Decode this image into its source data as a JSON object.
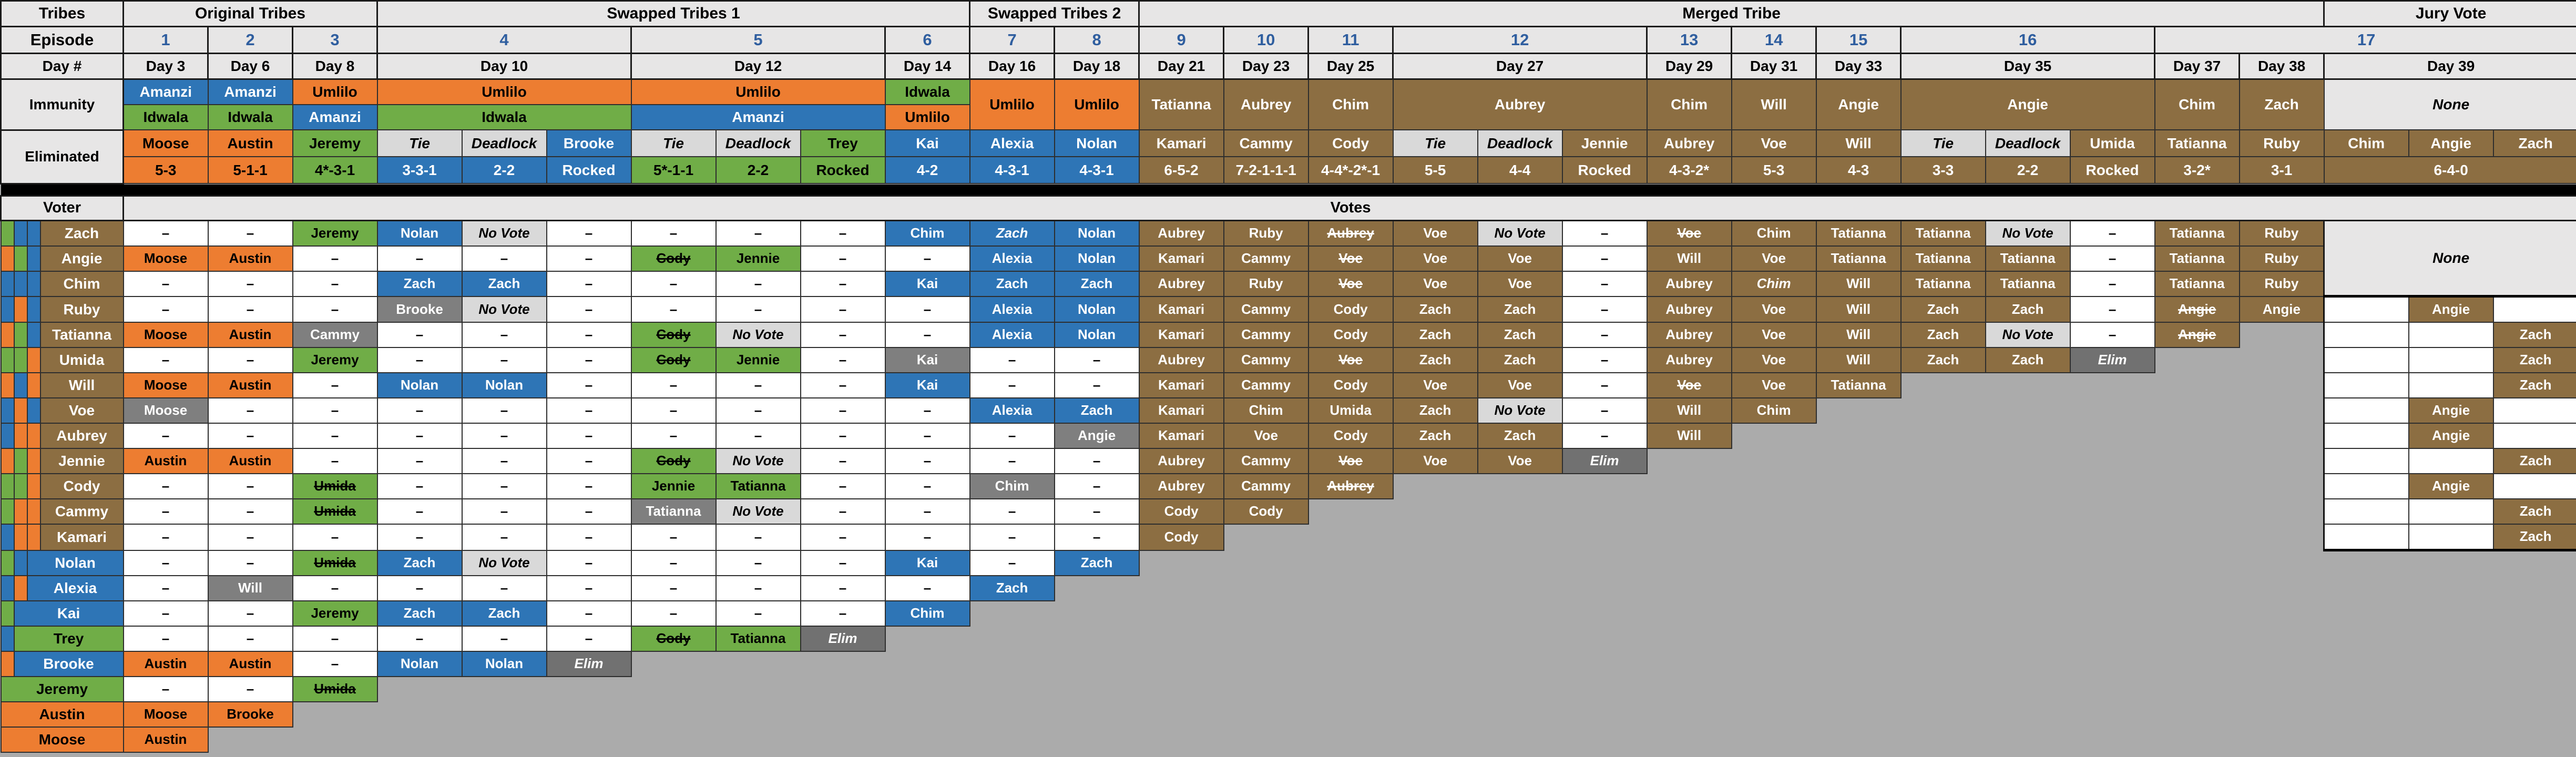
{
  "colors": {
    "orange": "#ED7D31",
    "green": "#70AD47",
    "blue": "#2E75B6",
    "brown_merged": "#8C6E42",
    "gray_vote": "#7F7F7F",
    "no_vote_gray": "#D9D9D9",
    "elim_gray": "#717171",
    "header_gray": "#E7E6E6",
    "void_background": "#ABABAB",
    "episode_number_blue": "#2F5E9F"
  },
  "labels": {
    "tribes": "Tribes",
    "episode": "Episode",
    "day": "Day #",
    "immunity": "Immunity",
    "eliminated": "Eliminated",
    "voter": "Voter",
    "votes": "Votes",
    "none": "None",
    "no_vote": "No Vote",
    "elim": "Elim",
    "tie": "Tie",
    "deadlock": "Deadlock",
    "rocked": "Rocked",
    "dash": "–"
  },
  "phases": [
    {
      "label": "Original Tribes",
      "span": 3
    },
    {
      "label": "Swapped Tribes 1",
      "span": 7
    },
    {
      "label": "Swapped Tribes 2",
      "span": 2
    },
    {
      "label": "Merged Tribe",
      "span": 14
    },
    {
      "label": "Jury Vote",
      "span": 3
    }
  ],
  "episodes": [
    {
      "num": "1",
      "span": 1
    },
    {
      "num": "2",
      "span": 1
    },
    {
      "num": "3",
      "span": 1
    },
    {
      "num": "4",
      "span": 3
    },
    {
      "num": "5",
      "span": 3
    },
    {
      "num": "6",
      "span": 1
    },
    {
      "num": "7",
      "span": 1
    },
    {
      "num": "8",
      "span": 1
    },
    {
      "num": "9",
      "span": 1
    },
    {
      "num": "10",
      "span": 1
    },
    {
      "num": "11",
      "span": 1
    },
    {
      "num": "12",
      "span": 3
    },
    {
      "num": "13",
      "span": 1
    },
    {
      "num": "14",
      "span": 1
    },
    {
      "num": "15",
      "span": 1
    },
    {
      "num": "16",
      "span": 3
    },
    {
      "num": "17",
      "span": 5
    }
  ],
  "days": [
    {
      "label": "Day 3",
      "span": 1
    },
    {
      "label": "Day 6",
      "span": 1
    },
    {
      "label": "Day 8",
      "span": 1
    },
    {
      "label": "Day 10",
      "span": 3
    },
    {
      "label": "Day 12",
      "span": 3
    },
    {
      "label": "Day 14",
      "span": 1
    },
    {
      "label": "Day 16",
      "span": 1
    },
    {
      "label": "Day 18",
      "span": 1
    },
    {
      "label": "Day 21",
      "span": 1
    },
    {
      "label": "Day 23",
      "span": 1
    },
    {
      "label": "Day 25",
      "span": 1
    },
    {
      "label": "Day 27",
      "span": 3
    },
    {
      "label": "Day 29",
      "span": 1
    },
    {
      "label": "Day 31",
      "span": 1
    },
    {
      "label": "Day 33",
      "span": 1
    },
    {
      "label": "Day 35",
      "span": 3
    },
    {
      "label": "Day 37",
      "span": 1
    },
    {
      "label": "Day 38",
      "span": 1
    },
    {
      "label": "Day 39",
      "span": 3
    }
  ],
  "immunity": [
    {
      "top": [
        "Amanzi",
        "b",
        1
      ],
      "bot": [
        "Idwala",
        "g",
        1
      ]
    },
    {
      "top": [
        "Amanzi",
        "b",
        1
      ],
      "bot": [
        "Idwala",
        "g",
        1
      ]
    },
    {
      "top": [
        "Umlilo",
        "o",
        1
      ],
      "bot": [
        "Amanzi",
        "b",
        1
      ]
    },
    {
      "top": [
        "Umlilo",
        "o",
        3
      ],
      "bot": [
        "Idwala",
        "g",
        3
      ]
    },
    {
      "top": [
        "Umlilo",
        "o",
        3
      ],
      "bot": [
        "Amanzi",
        "b",
        3
      ]
    },
    {
      "top": [
        "Idwala",
        "g",
        1
      ],
      "bot": [
        "Umlilo",
        "o",
        1
      ]
    },
    {
      "both": [
        "Umlilo",
        "o",
        1
      ]
    },
    {
      "both": [
        "Umlilo",
        "o",
        1
      ]
    },
    {
      "both": [
        "Tatianna",
        "m",
        1
      ]
    },
    {
      "both": [
        "Aubrey",
        "m",
        1
      ]
    },
    {
      "both": [
        "Chim",
        "m",
        1
      ]
    },
    {
      "both": [
        "Aubrey",
        "m",
        3
      ]
    },
    {
      "both": [
        "Chim",
        "m",
        1
      ]
    },
    {
      "both": [
        "Will",
        "m",
        1
      ]
    },
    {
      "both": [
        "Angie",
        "m",
        1
      ]
    },
    {
      "both": [
        "Angie",
        "m",
        3
      ]
    },
    {
      "both": [
        "Chim",
        "m",
        1
      ]
    },
    {
      "both": [
        "Zach",
        "m",
        1
      ]
    },
    {
      "both": [
        "None",
        "hdr",
        3,
        "i"
      ]
    }
  ],
  "eliminated": [
    {
      "name": "Moose|o",
      "tally": "5-3|o"
    },
    {
      "name": "Austin|o",
      "tally": "5-1-1|o"
    },
    {
      "name": "Jeremy|g",
      "tally": "4*-3-1|g"
    },
    {
      "name": "Tie|nv|i",
      "tally": "3-3-1|b"
    },
    {
      "name": "Deadlock|nv|i",
      "tally": "2-2|b"
    },
    {
      "name": "Brooke|b",
      "tally": "Rocked|b"
    },
    {
      "name": "Tie|nv|i",
      "tally": "5*-1-1|g"
    },
    {
      "name": "Deadlock|nv|i",
      "tally": "2-2|g"
    },
    {
      "name": "Trey|g",
      "tally": "Rocked|g"
    },
    {
      "name": "Kai|b",
      "tally": "4-2|b"
    },
    {
      "name": "Alexia|b",
      "tally": "4-3-1|b"
    },
    {
      "name": "Nolan|b",
      "tally": "4-3-1|b"
    },
    {
      "name": "Kamari|m",
      "tally": "6-5-2|m"
    },
    {
      "name": "Cammy|m",
      "tally": "7-2-1-1-1|m"
    },
    {
      "name": "Cody|m",
      "tally": "4-4*-2*-1|m"
    },
    {
      "name": "Tie|nv|i",
      "tally": "5-5|m"
    },
    {
      "name": "Deadlock|nv|i",
      "tally": "4-4|m"
    },
    {
      "name": "Jennie|m",
      "tally": "Rocked|m"
    },
    {
      "name": "Aubrey|m",
      "tally": "4-3-2*|m"
    },
    {
      "name": "Voe|m",
      "tally": "5-3|m"
    },
    {
      "name": "Will|m",
      "tally": "4-3|m"
    },
    {
      "name": "Tie|nv|i",
      "tally": "3-3|m"
    },
    {
      "name": "Deadlock|nv|i",
      "tally": "2-2|m"
    },
    {
      "name": "Umida|m",
      "tally": "Rocked|m"
    },
    {
      "name": "Tatianna|m",
      "tally": "3-2*|m"
    },
    {
      "name": "Ruby|m",
      "tally": "3-1|m"
    }
  ],
  "final_three": {
    "names": [
      "Chim|m",
      "Angie|m",
      "Zach|m"
    ],
    "tally": "6-4-0|m"
  },
  "voters": [
    {
      "name": "Zach",
      "name_color": "m",
      "strips": [
        "g",
        "b",
        "b"
      ],
      "votes": [
        "-",
        "-",
        "Jeremy|g",
        "Nolan|b",
        "No Vote|nv",
        "-",
        "-",
        "-",
        "-",
        "Chim|b",
        "Zach|b|i",
        "Nolan|b",
        "Aubrey|m",
        "Ruby|m",
        "Aubrey|m|s",
        "Voe|m",
        "No Vote|nv",
        "-",
        "Voe|m|s",
        "Chim|m",
        "Tatianna|m",
        "Tatianna|m",
        "No Vote|nv",
        "-",
        "Tatianna|m",
        "Ruby|m"
      ],
      "jury": "none-merge"
    },
    {
      "name": "Angie",
      "name_color": "m",
      "strips": [
        "o",
        "g",
        "b"
      ],
      "votes": [
        "Moose|o",
        "Austin|o",
        "-",
        "-",
        "-",
        "-",
        "Cody|g|s",
        "Jennie|g",
        "-",
        "-",
        "Alexia|b",
        "Nolan|b",
        "Kamari|m",
        "Cammy|m",
        "Voe|m|s",
        "Voe|m",
        "Voe|m",
        "-",
        "Will|m",
        "Voe|m",
        "Tatianna|m",
        "Tatianna|m",
        "Tatianna|m",
        "-",
        "Tatianna|m",
        "Ruby|m"
      ],
      "jury": "covered"
    },
    {
      "name": "Chim",
      "name_color": "m",
      "strips": [
        "b",
        "b",
        "b"
      ],
      "votes": [
        "-",
        "-",
        "-",
        "Zach|b",
        "Zach|b",
        "-",
        "-",
        "-",
        "-",
        "Kai|b",
        "Zach|b",
        "Zach|b",
        "Aubrey|m",
        "Ruby|m",
        "Voe|m|s",
        "Voe|m",
        "Voe|m",
        "-",
        "Aubrey|m",
        "Chim|m|i",
        "Will|m",
        "Tatianna|m",
        "Tatianna|m",
        "-",
        "Tatianna|m",
        "Ruby|m"
      ],
      "jury": "covered"
    },
    {
      "name": "Ruby",
      "name_color": "m",
      "strips": [
        "b",
        "o",
        "b"
      ],
      "votes": [
        "-",
        "-",
        "-",
        "Brooke|gy",
        "No Vote|nv",
        "-",
        "-",
        "-",
        "-",
        "-",
        "Alexia|b",
        "Nolan|b",
        "Kamari|m",
        "Cammy|m",
        "Cody|m",
        "Zach|m",
        "Zach|m",
        "-",
        "Aubrey|m",
        "Voe|m",
        "Will|m",
        "Zach|m",
        "Zach|m",
        "-",
        "Angie|m|s",
        "Angie|m"
      ],
      "jury": [
        "",
        "Angie|m",
        ""
      ]
    },
    {
      "name": "Tatianna",
      "name_color": "m",
      "strips": [
        "o",
        "g",
        "b"
      ],
      "votes": [
        "Moose|o",
        "Austin|o",
        "Cammy|gy",
        "-",
        "-",
        "-",
        "Cody|g|s",
        "No Vote|nv",
        "-",
        "-",
        "Alexia|b",
        "Nolan|b",
        "Kamari|m",
        "Cammy|m",
        "Cody|m",
        "Zach|m",
        "Zach|m",
        "-",
        "Aubrey|m",
        "Voe|m",
        "Will|m",
        "Zach|m",
        "No Vote|nv",
        "-",
        "Angie|m|s"
      ],
      "jury": [
        "",
        "",
        "Zach|m"
      ]
    },
    {
      "name": "Umida",
      "name_color": "m",
      "strips": [
        "g",
        "g",
        "o"
      ],
      "votes": [
        "-",
        "-",
        "Jeremy|g",
        "-",
        "-",
        "-",
        "Cody|g|s",
        "Jennie|g",
        "-",
        "Kai|gy",
        "-",
        "-",
        "Aubrey|m",
        "Cammy|m",
        "Voe|m|s",
        "Zach|m",
        "Zach|m",
        "-",
        "Aubrey|m",
        "Voe|m",
        "Will|m",
        "Zach|m",
        "Zach|m",
        "Elim|e"
      ],
      "jury": [
        "",
        "",
        "Zach|m"
      ]
    },
    {
      "name": "Will",
      "name_color": "m",
      "strips": [
        "o",
        "b",
        "o"
      ],
      "votes": [
        "Moose|o",
        "Austin|o",
        "-",
        "Nolan|b",
        "Nolan|b",
        "-",
        "-",
        "-",
        "-",
        "Kai|b",
        "-",
        "-",
        "Kamari|m",
        "Cammy|m",
        "Cody|m",
        "Voe|m",
        "Voe|m",
        "-",
        "Voe|m|s",
        "Voe|m",
        "Tatianna|m"
      ],
      "jury": [
        "",
        "",
        "Zach|m"
      ]
    },
    {
      "name": "Voe",
      "name_color": "m",
      "strips": [
        "b",
        "o",
        "b"
      ],
      "votes": [
        "Moose|gy",
        "-",
        "-",
        "-",
        "-",
        "-",
        "-",
        "-",
        "-",
        "-",
        "Alexia|b",
        "Zach|b",
        "Kamari|m",
        "Chim|m",
        "Umida|m",
        "Zach|m",
        "No Vote|nv",
        "-",
        "Will|m",
        "Chim|m"
      ],
      "jury": [
        "",
        "Angie|m",
        ""
      ]
    },
    {
      "name": "Aubrey",
      "name_color": "m",
      "strips": [
        "b",
        "o",
        "o"
      ],
      "votes": [
        "-",
        "-",
        "-",
        "-",
        "-",
        "-",
        "-",
        "-",
        "-",
        "-",
        "-",
        "Angie|gy",
        "Kamari|m",
        "Voe|m",
        "Cody|m",
        "Zach|m",
        "Zach|m",
        "-",
        "Will|m"
      ],
      "jury": [
        "",
        "Angie|m",
        ""
      ]
    },
    {
      "name": "Jennie",
      "name_color": "m",
      "strips": [
        "o",
        "g",
        "o"
      ],
      "votes": [
        "Austin|o",
        "Austin|o",
        "-",
        "-",
        "-",
        "-",
        "Cody|g|s",
        "No Vote|nv",
        "-",
        "-",
        "-",
        "-",
        "Aubrey|m",
        "Cammy|m",
        "Voe|m|s",
        "Voe|m",
        "Voe|m",
        "Elim|e"
      ],
      "jury": [
        "",
        "",
        "Zach|m"
      ]
    },
    {
      "name": "Cody",
      "name_color": "m",
      "strips": [
        "g",
        "g",
        "o"
      ],
      "votes": [
        "-",
        "-",
        "Umida|g|s",
        "-",
        "-",
        "-",
        "Jennie|g",
        "Tatianna|g",
        "-",
        "-",
        "Chim|gy",
        "-",
        "Aubrey|m",
        "Cammy|m",
        "Aubrey|m|s"
      ],
      "jury": [
        "",
        "Angie|m",
        ""
      ]
    },
    {
      "name": "Cammy",
      "name_color": "m",
      "strips": [
        "g",
        "o",
        "o"
      ],
      "votes": [
        "-",
        "-",
        "Umida|g|s",
        "-",
        "-",
        "-",
        "Tatianna|gy",
        "No Vote|nv",
        "-",
        "-",
        "-",
        "-",
        "Cody|m",
        "Cody|m"
      ],
      "jury": [
        "",
        "",
        "Zach|m"
      ]
    },
    {
      "name": "Kamari",
      "name_color": "m",
      "strips": [
        "b",
        "o",
        "o"
      ],
      "votes": [
        "-",
        "-",
        "-",
        "-",
        "-",
        "-",
        "-",
        "-",
        "-",
        "-",
        "-",
        "-",
        "Cody|m"
      ],
      "jury": [
        "",
        "",
        "Zach|m"
      ],
      "jury_last": true
    },
    {
      "name": "Nolan",
      "name_color": "b",
      "strips": [
        "g",
        "b"
      ],
      "votes": [
        "-",
        "-",
        "Umida|g|s",
        "Zach|b",
        "No Vote|nv",
        "-",
        "-",
        "-",
        "-",
        "Kai|b",
        "-",
        "Zach|b"
      ],
      "jury": "absent"
    },
    {
      "name": "Alexia",
      "name_color": "b",
      "strips": [
        "b",
        "o"
      ],
      "votes": [
        "-",
        "Will|gy",
        "-",
        "-",
        "-",
        "-",
        "-",
        "-",
        "-",
        "-",
        "Zach|b"
      ],
      "jury": "absent"
    },
    {
      "name": "Kai",
      "name_color": "b",
      "strips": [
        "g"
      ],
      "votes": [
        "-",
        "-",
        "Jeremy|g",
        "Zach|b",
        "Zach|b",
        "-",
        "-",
        "-",
        "-",
        "Chim|b"
      ],
      "jury": "absent"
    },
    {
      "name": "Trey",
      "name_color": "g",
      "strips": [
        "b"
      ],
      "votes": [
        "-",
        "-",
        "-",
        "-",
        "-",
        "-",
        "Cody|g|s",
        "Tatianna|g",
        "Elim|e"
      ],
      "jury": "absent"
    },
    {
      "name": "Brooke",
      "name_color": "b",
      "strips": [
        "o"
      ],
      "votes": [
        "Austin|o",
        "Austin|o",
        "-",
        "Nolan|b",
        "Nolan|b",
        "Elim|e"
      ],
      "jury": "absent"
    },
    {
      "name": "Jeremy",
      "name_color": "g",
      "strips": [],
      "votes": [
        "-",
        "-",
        "Umida|g|s"
      ],
      "jury": "absent"
    },
    {
      "name": "Austin",
      "name_color": "o",
      "strips": [],
      "votes": [
        "Moose|o",
        "Brooke|o"
      ],
      "jury": "absent"
    },
    {
      "name": "Moose",
      "name_color": "o",
      "strips": [],
      "votes": [
        "Austin|o"
      ],
      "jury": "absent"
    }
  ]
}
